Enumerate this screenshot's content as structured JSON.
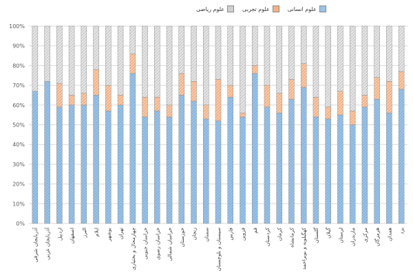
{
  "chart_data": {
    "type": "bar",
    "stacked": true,
    "percent_stacked": true,
    "title": "",
    "xlabel": "",
    "ylabel": "",
    "ylim": [
      0,
      100
    ],
    "yticks": [
      "0%",
      "10%",
      "20%",
      "30%",
      "40%",
      "50%",
      "60%",
      "70%",
      "80%",
      "90%",
      "100%"
    ],
    "legend_position": "top",
    "grid": true,
    "categories": [
      "آذربایجان شرقی",
      "آذربایجان غربی",
      "اردبیل",
      "اصفهان",
      "البرز",
      "ایلام",
      "بوشهر",
      "تهران",
      "چهارمحال و بختیاری",
      "خراسان جنوبی",
      "خراسان رضوی",
      "خراسان شمالی",
      "خوزستان",
      "زنجان",
      "سمنان",
      "سیستان و بلوچستان",
      "فارس",
      "قزوین",
      "قم",
      "کردستان",
      "کرمان",
      "کرمانشاه",
      "کهگیلویه و بویراحمد",
      "گلستان",
      "گیلان",
      "لرستان",
      "مازندران",
      "مرکزی",
      "هرمزگان",
      "همدان",
      "یزد"
    ],
    "series": [
      {
        "name": "علوم انسانی",
        "color": "#9dc3e6",
        "values": [
          67,
          72,
          59,
          60,
          60,
          65,
          57,
          60,
          76,
          54,
          57,
          54,
          65,
          62,
          53,
          52,
          64,
          54,
          76,
          59,
          56,
          63,
          69,
          54,
          53,
          55,
          50,
          59,
          63,
          56,
          68
        ]
      },
      {
        "name": "علوم تجربی",
        "color": "#f4b183",
        "values": [
          0,
          0,
          12,
          5,
          6,
          13,
          13,
          5,
          10,
          10,
          7,
          6,
          11,
          10,
          7,
          21,
          6,
          2,
          4,
          11,
          10,
          10,
          12,
          10,
          6,
          12,
          7,
          6,
          11,
          16,
          9
        ]
      },
      {
        "name": "علوم ریاضی",
        "color": "#d0d0d0",
        "values": [
          33,
          28,
          29,
          35,
          34,
          22,
          30,
          35,
          14,
          36,
          36,
          40,
          24,
          28,
          40,
          27,
          30,
          44,
          20,
          30,
          34,
          27,
          19,
          36,
          41,
          33,
          43,
          35,
          26,
          28,
          23
        ]
      }
    ]
  }
}
